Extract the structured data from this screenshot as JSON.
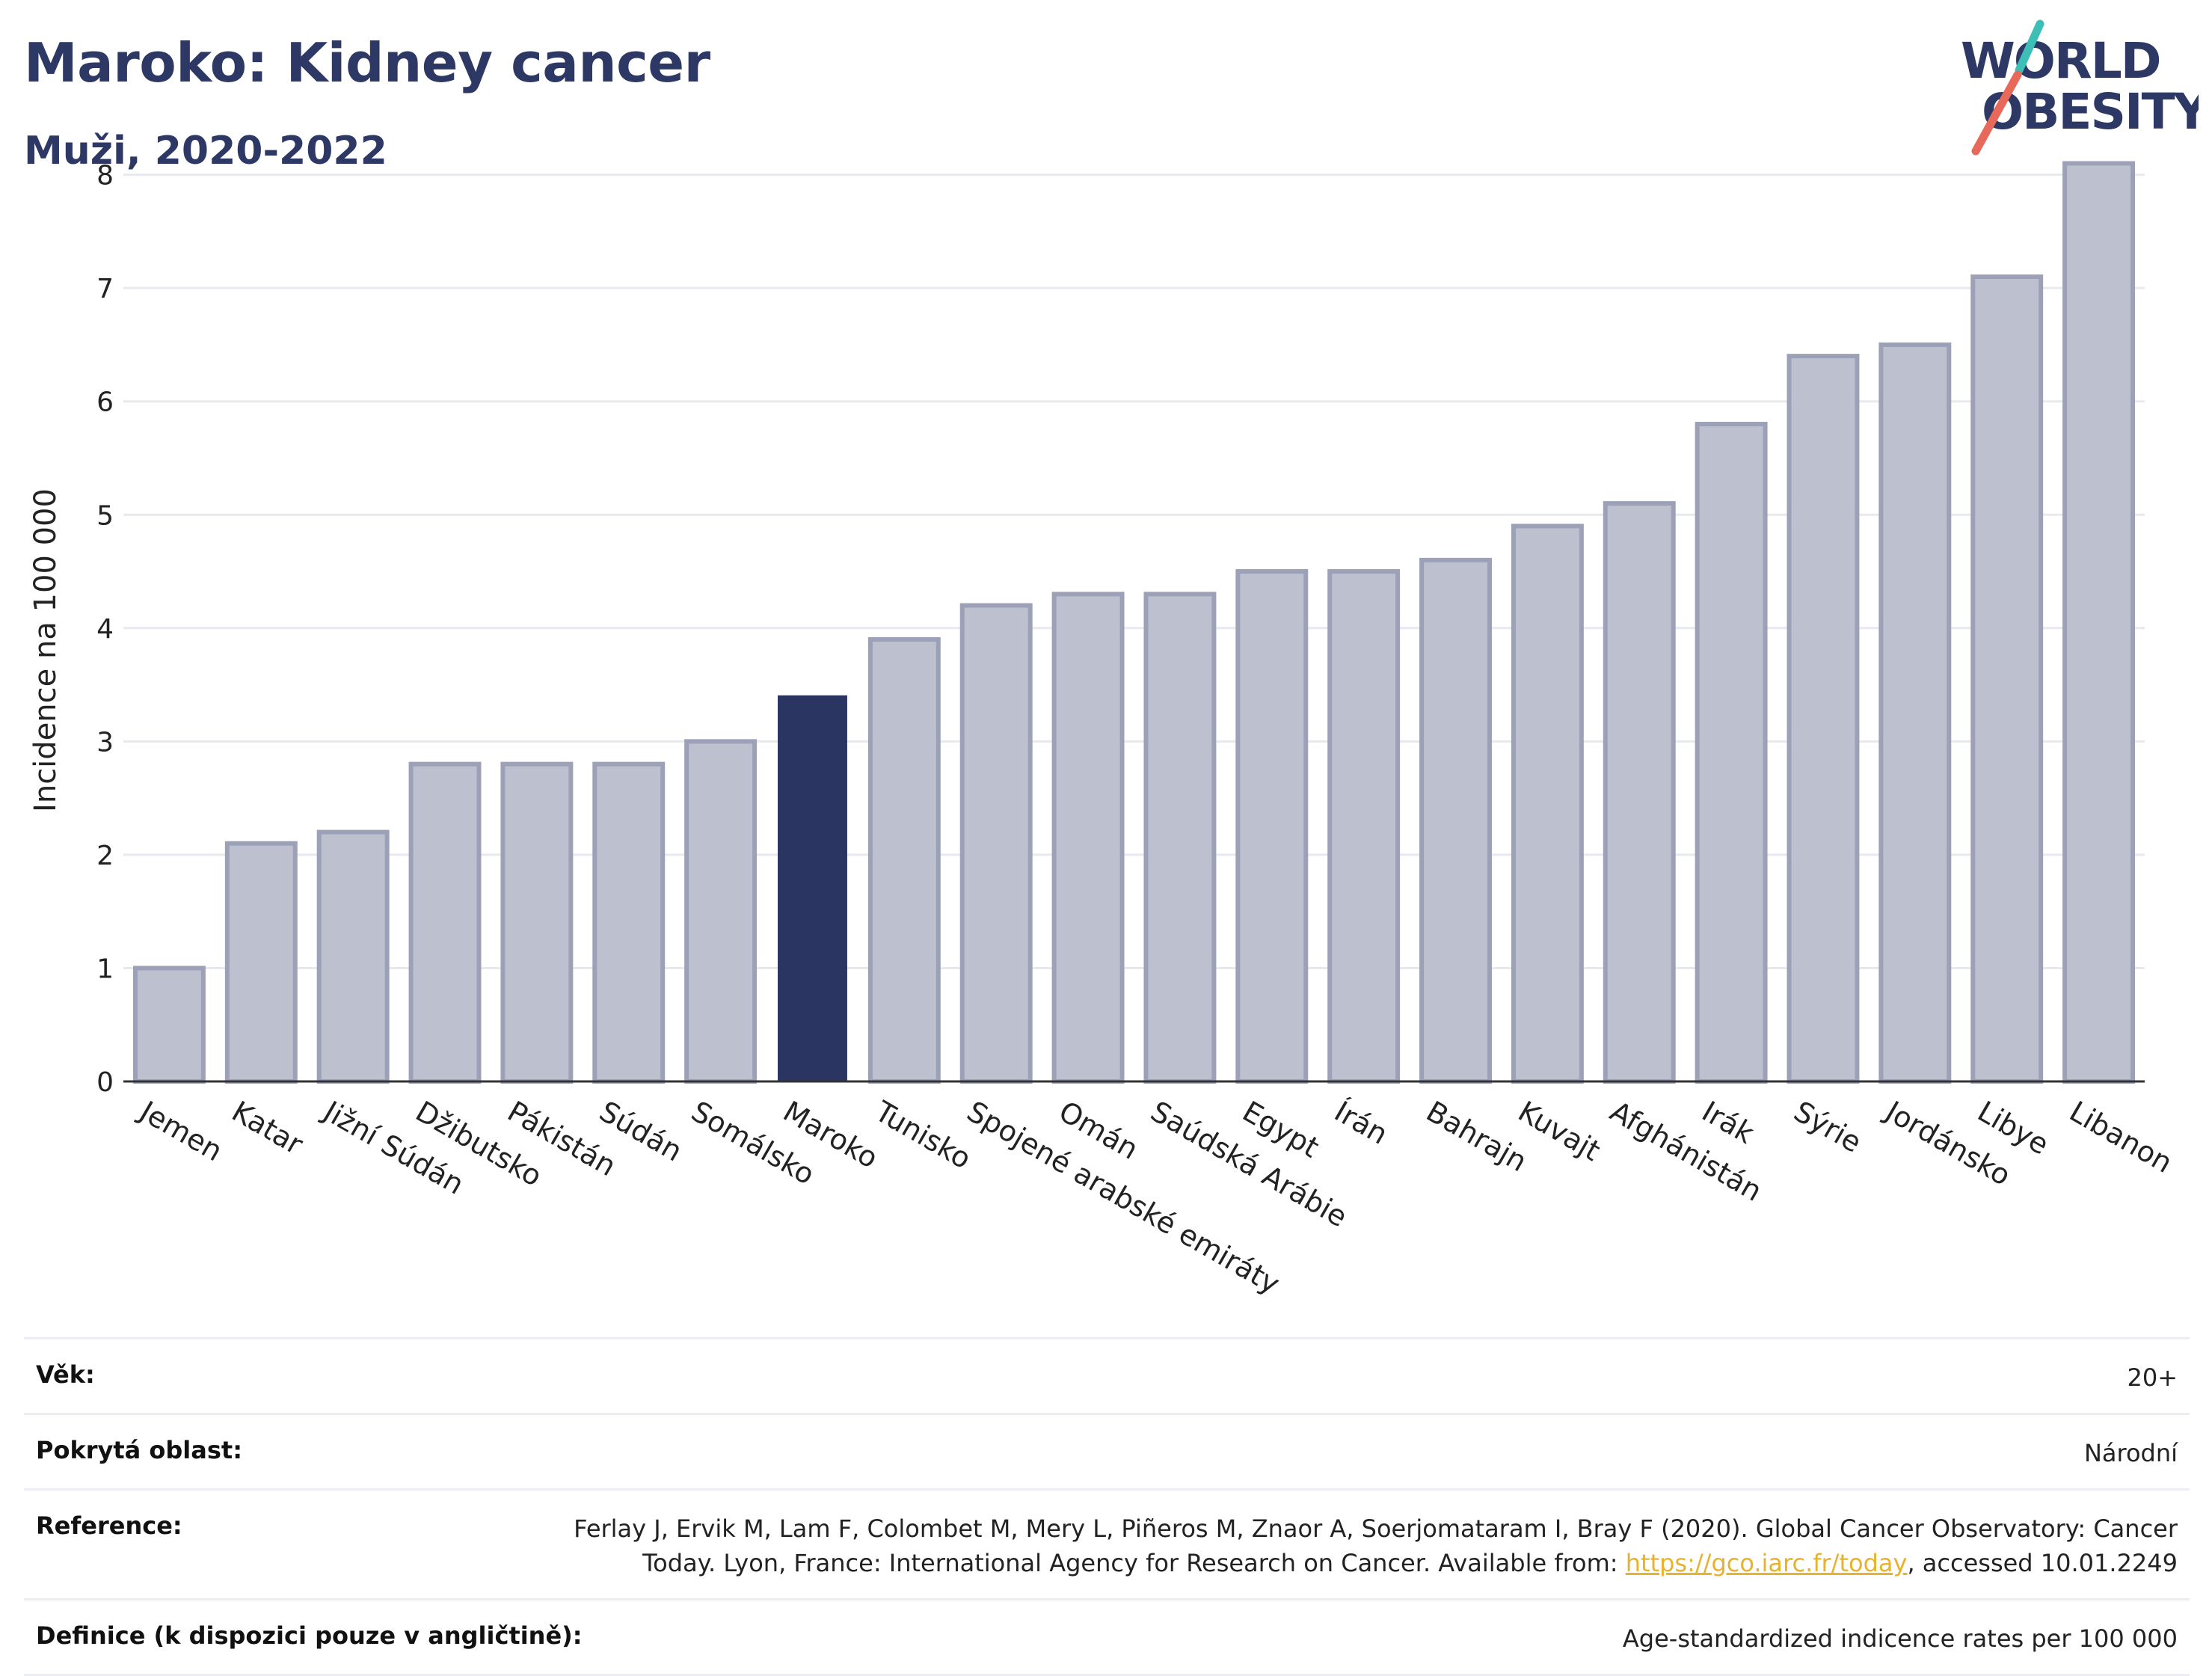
{
  "header": {
    "title": "Maroko: Kidney cancer",
    "subtitle": "Muži, 2020-2022"
  },
  "logo": {
    "line1": "WORLD",
    "line2": "OBESITY",
    "text_color": "#2d3864",
    "slash_top_color": "#3dbfb8",
    "slash_bottom_color": "#e8685a"
  },
  "chart_data": {
    "type": "bar",
    "categories": [
      "Jemen",
      "Katar",
      "Jižní Súdán",
      "Džibutsko",
      "Pákistán",
      "Súdán",
      "Somálsko",
      "Maroko",
      "Tunisko",
      "Spojené arabské emiráty",
      "Omán",
      "Saúdská Arábie",
      "Egypt",
      "Írán",
      "Bahrajn",
      "Kuvajt",
      "Afghánistán",
      "Irák",
      "Sýrie",
      "Jordánsko",
      "Libye",
      "Libanon"
    ],
    "values": [
      1.0,
      2.1,
      2.2,
      2.8,
      2.8,
      2.8,
      3.0,
      3.4,
      3.9,
      4.2,
      4.3,
      4.3,
      4.5,
      4.5,
      4.6,
      4.9,
      5.1,
      5.8,
      6.4,
      6.5,
      7.1,
      8.1
    ],
    "highlight": "Maroko",
    "ylabel": "Incidence na 100 000",
    "ylim": [
      0,
      8.4
    ],
    "yticks": [
      0,
      1,
      2,
      3,
      4,
      5,
      6,
      7,
      8
    ],
    "grid": true,
    "colors": {
      "bar": "#bdc0ce",
      "bar_border": "#9ca1b7",
      "highlight": "#2b3561",
      "grid": "#e8e9ee",
      "axis": "#333333"
    }
  },
  "meta": {
    "rows": [
      {
        "label": "Věk:",
        "value": "20+"
      },
      {
        "label": "Pokrytá oblast:",
        "value": "Národní"
      },
      {
        "label": "Reference:",
        "value_line1": "Ferlay J, Ervik M, Lam F, Colombet M, Mery L, Piñeros M, Znaor A, Soerjomataram I, Bray F (2020). Global Cancer Observatory: Cancer",
        "value_line2_pre": "Today. Lyon, France: International Agency for Research on Cancer. Available from: ",
        "link": "https://gco.iarc.fr/today",
        "value_line2_post": ", accessed 10.01.2249"
      },
      {
        "label": "Definice (k dispozici pouze v angličtině):",
        "value": "Age-standardized indicence rates per 100 000"
      }
    ]
  }
}
